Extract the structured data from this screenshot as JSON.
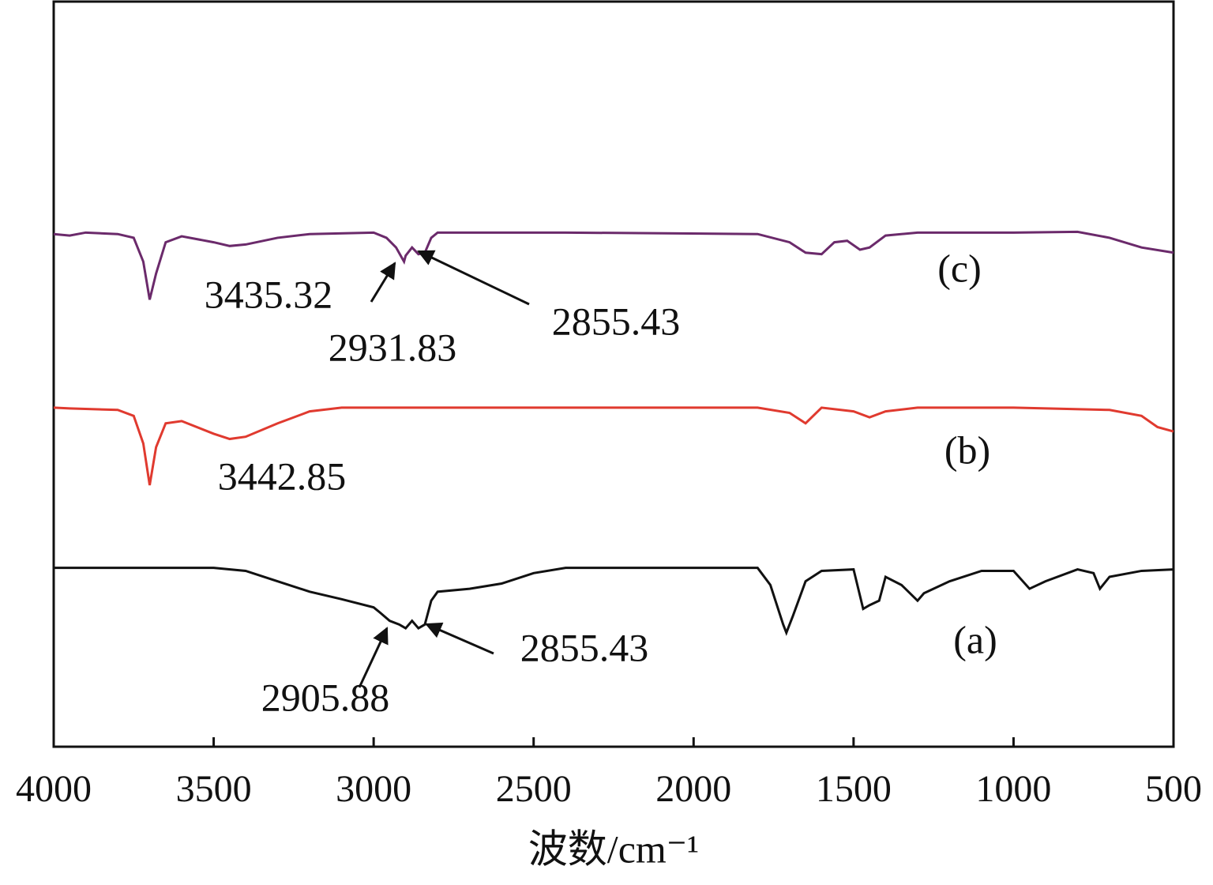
{
  "chart_data": {
    "type": "line",
    "xlabel": "波数/cm⁻¹",
    "xlim": [
      4000,
      500
    ],
    "xticks": [
      4000,
      3500,
      3000,
      2500,
      2000,
      1500,
      1000,
      500
    ],
    "ylim": [
      0,
      100
    ],
    "series": [
      {
        "name": "(a)",
        "color": "#111111",
        "x": [
          4000,
          3500,
          3400,
          3300,
          3200,
          3100,
          3000,
          2980,
          2950,
          2920,
          2900,
          2880,
          2860,
          2840,
          2820,
          2800,
          2700,
          2600,
          2500,
          2400,
          1800,
          1760,
          1720,
          1710,
          1690,
          1650,
          1600,
          1500,
          1470,
          1450,
          1420,
          1400,
          1350,
          1300,
          1280,
          1200,
          1100,
          1000,
          950,
          900,
          800,
          750,
          730,
          700,
          600,
          500
        ],
        "values": [
          24.0,
          24.0,
          23.6,
          22.2,
          20.8,
          19.8,
          18.7,
          18.0,
          16.9,
          16.4,
          15.9,
          16.9,
          15.9,
          16.4,
          19.6,
          20.8,
          21.2,
          21.9,
          23.3,
          24.0,
          24.0,
          21.7,
          16.4,
          15.3,
          17.5,
          22.2,
          23.6,
          23.8,
          18.5,
          19.0,
          19.6,
          22.8,
          21.7,
          19.6,
          20.6,
          22.2,
          23.6,
          23.6,
          21.2,
          22.2,
          23.8,
          23.3,
          21.2,
          22.8,
          23.6,
          23.8
        ]
      },
      {
        "name": "(b)",
        "color": "#e03a2f",
        "x": [
          4000,
          3950,
          3800,
          3750,
          3720,
          3700,
          3680,
          3650,
          3600,
          3500,
          3450,
          3400,
          3300,
          3200,
          3100,
          1800,
          1700,
          1650,
          1600,
          1500,
          1450,
          1400,
          1300,
          1000,
          700,
          600,
          550,
          500
        ],
        "values": [
          45.5,
          45.4,
          45.2,
          44.4,
          40.7,
          35.1,
          40.2,
          43.4,
          43.7,
          42.0,
          41.3,
          41.6,
          43.4,
          45.0,
          45.5,
          45.5,
          44.8,
          43.4,
          45.5,
          45.0,
          44.2,
          45.0,
          45.5,
          45.5,
          45.2,
          44.4,
          42.9,
          42.3
        ]
      },
      {
        "name": "(c)",
        "color": "#6b2a6b",
        "x": [
          4000,
          3950,
          3900,
          3800,
          3750,
          3720,
          3700,
          3680,
          3650,
          3600,
          3500,
          3450,
          3400,
          3300,
          3200,
          3000,
          2960,
          2930,
          2905,
          2900,
          2880,
          2860,
          2840,
          2820,
          2800,
          2400,
          1800,
          1700,
          1650,
          1600,
          1560,
          1520,
          1480,
          1450,
          1400,
          1300,
          1000,
          800,
          700,
          600,
          500
        ],
        "values": [
          68.8,
          68.6,
          69.0,
          68.8,
          68.3,
          65.1,
          60.0,
          63.5,
          67.7,
          68.5,
          67.7,
          67.2,
          67.4,
          68.3,
          68.8,
          69.0,
          68.3,
          67.0,
          65.1,
          65.9,
          67.0,
          66.1,
          66.3,
          68.3,
          69.0,
          69.0,
          68.8,
          67.7,
          66.3,
          66.1,
          67.7,
          67.9,
          66.7,
          67.0,
          68.6,
          69.0,
          69.0,
          69.1,
          68.3,
          67.0,
          66.3
        ]
      }
    ],
    "annotations": [
      "3435.32",
      "2931.83",
      "2855.43",
      "3442.85",
      "2905.88",
      "2855.43"
    ]
  }
}
